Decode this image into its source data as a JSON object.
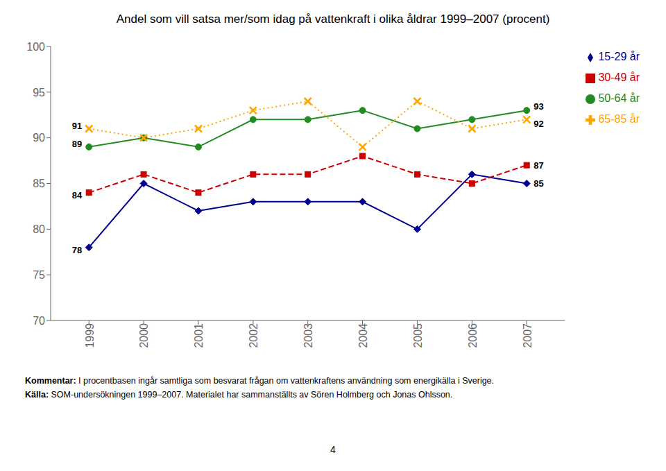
{
  "chart_data": {
    "type": "line",
    "title": "Andel som vill satsa mer/som idag på vattenkraft i olika åldrar 1999–2007 (procent)",
    "x": [
      1999,
      2000,
      2001,
      2002,
      2003,
      2004,
      2005,
      2006,
      2007
    ],
    "xlim": [
      1998.3,
      2007.7
    ],
    "xticks": [
      1999,
      2000,
      2001,
      2002,
      2003,
      2004,
      2005,
      2006,
      2007
    ],
    "ylim": [
      70,
      100
    ],
    "yticks": [
      70,
      75,
      80,
      85,
      90,
      95,
      100
    ],
    "grid": false,
    "legend": "right",
    "series": [
      {
        "name": "15-29 år",
        "color": "#00008B",
        "marker": "diamond",
        "line_style": "solid",
        "values": [
          78,
          85,
          82,
          83,
          83,
          83,
          80,
          86,
          85
        ],
        "value_labels": [
          "78",
          null,
          null,
          null,
          null,
          null,
          null,
          null,
          "85"
        ]
      },
      {
        "name": "30-49 år",
        "color": "#CC0000",
        "marker": "square",
        "line_style": "dashed",
        "values": [
          84,
          86,
          84,
          86,
          86,
          88,
          86,
          85,
          87
        ],
        "value_labels": [
          "84",
          null,
          null,
          null,
          null,
          null,
          null,
          null,
          "87"
        ]
      },
      {
        "name": "50-64 år",
        "color": "#228B22",
        "marker": "circle",
        "line_style": "solid",
        "values": [
          89,
          90,
          89,
          92,
          92,
          93,
          91,
          92,
          93
        ],
        "value_labels": [
          "89",
          null,
          null,
          null,
          null,
          null,
          null,
          null,
          "93"
        ]
      },
      {
        "name": "65-85 år",
        "color": "#FFA500",
        "marker": "x",
        "line_style": "dotted",
        "values": [
          91,
          90,
          91,
          93,
          94,
          89,
          94,
          91,
          92
        ],
        "value_labels": [
          "91",
          null,
          null,
          null,
          null,
          null,
          null,
          null,
          "92"
        ]
      }
    ],
    "annotations": [
      "Kommentar: I procentbasen ingår samtliga som besvarat frågan om vattenkraftens användning som energikälla i Sverige.",
      "Källa: SOM-undersökningen 1999–2007. Materialet har sammanställts av Sören Holmberg och Jonas Ohlsson.",
      "4"
    ]
  }
}
